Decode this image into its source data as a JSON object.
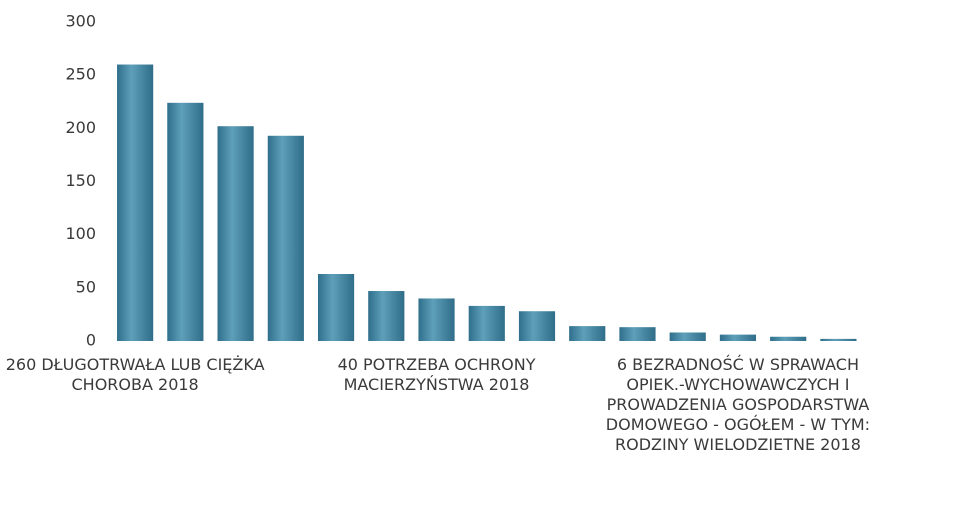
{
  "chart_data": {
    "type": "bar",
    "categories": [
      "260 DŁUGOTRWAŁA LUB CIĘŻKA CHOROBA 2018",
      null,
      null,
      null,
      null,
      null,
      "40 POTRZEBA OCHRONY MACIERZYŃSTWA 2018",
      null,
      null,
      null,
      null,
      null,
      "6 BEZRADNOŚĆ W SPRAWACH OPIEK.-WYCHOWAWCZYCH I PROWADZENIA GOSPODARSTWA DOMOWEGO - OGÓŁEM - W TYM: RODZINY WIELODZIETNE 2018",
      null,
      null,
      null,
      null
    ],
    "values": [
      260,
      224,
      202,
      193,
      63,
      47,
      40,
      33,
      28,
      14,
      13,
      8,
      6,
      4,
      2,
      0,
      0
    ],
    "color": "#4a8aa6",
    "ylim": [
      0,
      300
    ],
    "yticks": [
      0,
      50,
      100,
      150,
      200,
      250,
      300
    ],
    "grid": false
  }
}
